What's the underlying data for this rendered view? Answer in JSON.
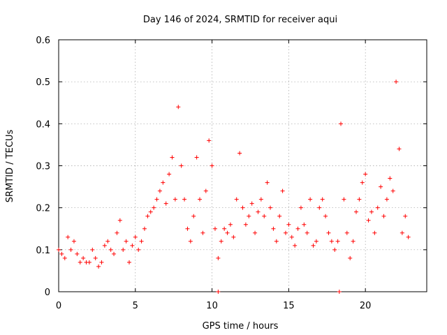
{
  "chart_data": {
    "type": "scatter",
    "title": "Day 146 of 2024, SRMTID for receiver aqui",
    "xlabel": "GPS time / hours",
    "ylabel": "SRMTID / TECUs",
    "xlim": [
      0,
      24
    ],
    "ylim": [
      0,
      0.6
    ],
    "xticks": [
      0,
      5,
      10,
      15,
      20
    ],
    "yticks": [
      0,
      0.1,
      0.2,
      0.3,
      0.4,
      0.5,
      0.6
    ],
    "grid": true,
    "marker": "plus",
    "color": "#ff0000",
    "series": [
      {
        "name": "SRMTID",
        "x": [
          0.0,
          0.2,
          0.4,
          0.6,
          0.8,
          1.0,
          1.2,
          1.4,
          1.6,
          1.8,
          2.0,
          2.2,
          2.4,
          2.6,
          2.8,
          3.0,
          3.2,
          3.4,
          3.6,
          3.8,
          4.0,
          4.2,
          4.4,
          4.6,
          4.8,
          5.0,
          5.2,
          5.4,
          5.6,
          5.8,
          6.0,
          6.2,
          6.4,
          6.6,
          6.8,
          7.0,
          7.2,
          7.4,
          7.6,
          7.8,
          8.0,
          8.2,
          8.4,
          8.6,
          8.8,
          9.0,
          9.2,
          9.4,
          9.6,
          9.8,
          10.0,
          10.2,
          10.4,
          10.6,
          10.8,
          11.0,
          11.2,
          11.4,
          11.6,
          11.8,
          12.0,
          12.2,
          12.4,
          12.6,
          12.8,
          13.0,
          13.2,
          13.4,
          13.6,
          13.8,
          14.0,
          14.2,
          14.4,
          14.6,
          14.8,
          15.0,
          15.2,
          15.4,
          15.6,
          15.8,
          16.0,
          16.2,
          16.4,
          16.6,
          16.8,
          17.0,
          17.2,
          17.4,
          17.6,
          17.8,
          18.0,
          18.2,
          18.4,
          18.6,
          18.8,
          19.0,
          19.2,
          19.4,
          19.6,
          19.8,
          20.0,
          20.2,
          20.4,
          20.6,
          20.8,
          21.0,
          21.2,
          21.4,
          21.6,
          21.8,
          22.0,
          22.2,
          22.4,
          22.6,
          22.8
        ],
        "y": [
          0.1,
          0.09,
          0.08,
          0.13,
          0.1,
          0.12,
          0.09,
          0.07,
          0.08,
          0.07,
          0.07,
          0.1,
          0.08,
          0.06,
          0.07,
          0.11,
          0.12,
          0.1,
          0.09,
          0.14,
          0.17,
          0.1,
          0.12,
          0.07,
          0.11,
          0.13,
          0.1,
          0.12,
          0.15,
          0.18,
          0.19,
          0.2,
          0.22,
          0.24,
          0.26,
          0.21,
          0.28,
          0.32,
          0.22,
          0.44,
          0.3,
          0.22,
          0.15,
          0.12,
          0.18,
          0.32,
          0.22,
          0.14,
          0.24,
          0.36,
          0.3,
          0.15,
          0.08,
          0.12,
          0.15,
          0.14,
          0.16,
          0.13,
          0.22,
          0.33,
          0.2,
          0.16,
          0.18,
          0.21,
          0.14,
          0.19,
          0.22,
          0.18,
          0.26,
          0.2,
          0.15,
          0.12,
          0.18,
          0.24,
          0.14,
          0.16,
          0.13,
          0.11,
          0.15,
          0.2,
          0.16,
          0.14,
          0.22,
          0.11,
          0.12,
          0.2,
          0.22,
          0.18,
          0.14,
          0.12,
          0.1,
          0.12,
          0.4,
          0.22,
          0.14,
          0.08,
          0.12,
          0.19,
          0.22,
          0.26,
          0.28,
          0.17,
          0.19,
          0.14,
          0.2,
          0.25,
          0.18,
          0.22,
          0.27,
          0.24,
          0.5,
          0.34,
          0.14,
          0.18,
          0.13
        ]
      }
    ],
    "markers_on_axis": [
      {
        "x": 10.4,
        "y": 0
      },
      {
        "x": 18.3,
        "y": 0
      }
    ]
  }
}
